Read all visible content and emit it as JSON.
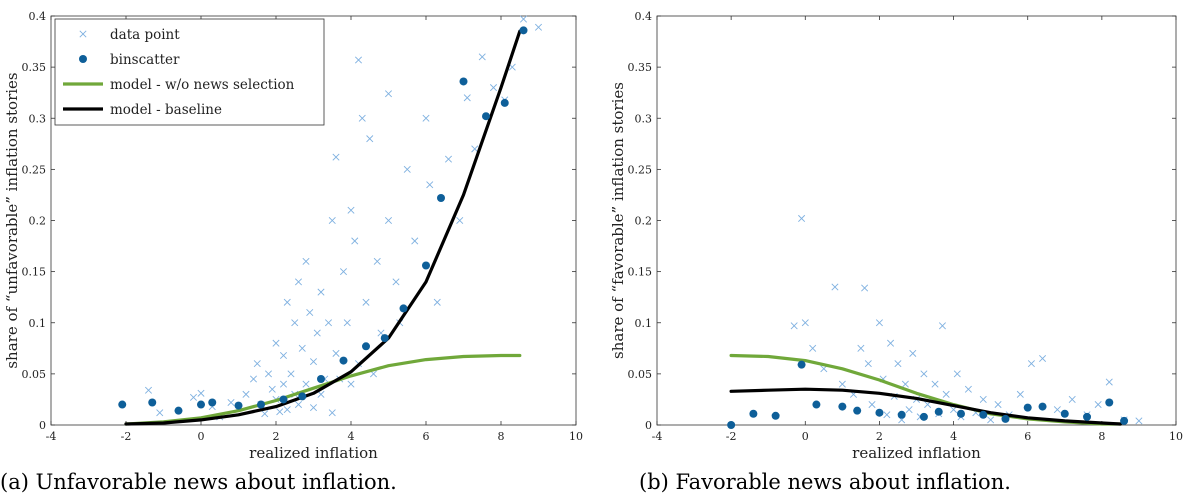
{
  "figure": {
    "caption_a": "(a) Unfavorable news about inflation.",
    "caption_b": "(b) Favorable news about inflation."
  },
  "colors": {
    "data_point": "#7eb0e0",
    "binscatter": "#0e5f99",
    "model_no_selection": "#70a83a",
    "model_baseline": "#000000",
    "axis": "#333333"
  },
  "chart_data": [
    {
      "type": "scatter",
      "xlabel": "realized inflation",
      "ylabel": "share of “unfavorable” inflation stories",
      "xlim": [
        -4,
        10
      ],
      "ylim": [
        0,
        0.4
      ],
      "xticks": [
        -4,
        -2,
        0,
        2,
        4,
        6,
        8,
        10
      ],
      "yticks": [
        0,
        0.05,
        0.1,
        0.15,
        0.2,
        0.25,
        0.3,
        0.35,
        0.4
      ],
      "legend": {
        "position": "top-left",
        "entries": [
          "data point",
          "binscatter",
          "model - w/o news selection",
          "model - baseline"
        ]
      },
      "series": [
        {
          "name": "data point",
          "marker": "x",
          "points": [
            [
              -1.4,
              0.034
            ],
            [
              -1.1,
              0.012
            ],
            [
              -0.2,
              0.027
            ],
            [
              0.0,
              0.031
            ],
            [
              0.3,
              0.018
            ],
            [
              0.5,
              0.008
            ],
            [
              0.8,
              0.022
            ],
            [
              1.0,
              0.017
            ],
            [
              1.2,
              0.03
            ],
            [
              1.4,
              0.045
            ],
            [
              1.5,
              0.06
            ],
            [
              1.6,
              0.02
            ],
            [
              1.7,
              0.011
            ],
            [
              1.8,
              0.05
            ],
            [
              1.9,
              0.035
            ],
            [
              2.0,
              0.08
            ],
            [
              2.0,
              0.025
            ],
            [
              2.1,
              0.013
            ],
            [
              2.2,
              0.068
            ],
            [
              2.2,
              0.04
            ],
            [
              2.3,
              0.12
            ],
            [
              2.3,
              0.015
            ],
            [
              2.4,
              0.05
            ],
            [
              2.5,
              0.1
            ],
            [
              2.5,
              0.03
            ],
            [
              2.6,
              0.14
            ],
            [
              2.6,
              0.02
            ],
            [
              2.7,
              0.075
            ],
            [
              2.8,
              0.16
            ],
            [
              2.8,
              0.04
            ],
            [
              2.9,
              0.11
            ],
            [
              3.0,
              0.062
            ],
            [
              3.0,
              0.017
            ],
            [
              3.1,
              0.09
            ],
            [
              3.2,
              0.13
            ],
            [
              3.2,
              0.03
            ],
            [
              3.3,
              0.045
            ],
            [
              3.4,
              0.1
            ],
            [
              3.5,
              0.2
            ],
            [
              3.5,
              0.012
            ],
            [
              3.6,
              0.262
            ],
            [
              3.6,
              0.07
            ],
            [
              3.7,
              0.045
            ],
            [
              3.8,
              0.15
            ],
            [
              3.9,
              0.1
            ],
            [
              4.0,
              0.21
            ],
            [
              4.0,
              0.04
            ],
            [
              4.1,
              0.18
            ],
            [
              4.2,
              0.357
            ],
            [
              4.2,
              0.06
            ],
            [
              4.3,
              0.3
            ],
            [
              4.4,
              0.12
            ],
            [
              4.5,
              0.28
            ],
            [
              4.6,
              0.05
            ],
            [
              4.7,
              0.16
            ],
            [
              4.8,
              0.09
            ],
            [
              5.0,
              0.2
            ],
            [
              5.0,
              0.324
            ],
            [
              5.2,
              0.14
            ],
            [
              5.3,
              0.1
            ],
            [
              5.5,
              0.25
            ],
            [
              5.7,
              0.18
            ],
            [
              6.0,
              0.3
            ],
            [
              6.1,
              0.235
            ],
            [
              6.3,
              0.12
            ],
            [
              6.6,
              0.26
            ],
            [
              6.9,
              0.2
            ],
            [
              7.1,
              0.32
            ],
            [
              7.3,
              0.27
            ],
            [
              7.5,
              0.36
            ],
            [
              7.8,
              0.33
            ],
            [
              8.1,
              0.318
            ],
            [
              8.3,
              0.35
            ],
            [
              8.6,
              0.397
            ],
            [
              9.0,
              0.389
            ]
          ]
        },
        {
          "name": "binscatter",
          "marker": "circle",
          "points": [
            [
              -2.1,
              0.02
            ],
            [
              -1.3,
              0.022
            ],
            [
              -0.6,
              0.014
            ],
            [
              0.0,
              0.02
            ],
            [
              0.3,
              0.022
            ],
            [
              1.0,
              0.019
            ],
            [
              1.6,
              0.02
            ],
            [
              2.2,
              0.025
            ],
            [
              2.7,
              0.028
            ],
            [
              3.2,
              0.045
            ],
            [
              3.8,
              0.063
            ],
            [
              4.4,
              0.077
            ],
            [
              4.9,
              0.085
            ],
            [
              5.4,
              0.114
            ],
            [
              6.0,
              0.156
            ],
            [
              6.4,
              0.222
            ],
            [
              7.0,
              0.336
            ],
            [
              7.6,
              0.302
            ],
            [
              8.1,
              0.315
            ],
            [
              8.6,
              0.386
            ]
          ]
        },
        {
          "name": "model - w/o news selection",
          "line": true,
          "points": [
            [
              -2,
              0.001
            ],
            [
              -1,
              0.003
            ],
            [
              0,
              0.007
            ],
            [
              1,
              0.014
            ],
            [
              2,
              0.024
            ],
            [
              3,
              0.036
            ],
            [
              4,
              0.048
            ],
            [
              5,
              0.058
            ],
            [
              6,
              0.064
            ],
            [
              7,
              0.067
            ],
            [
              8,
              0.068
            ],
            [
              8.5,
              0.068
            ]
          ]
        },
        {
          "name": "model - baseline",
          "line": true,
          "points": [
            [
              -2,
              0.001
            ],
            [
              -1,
              0.002
            ],
            [
              0,
              0.005
            ],
            [
              1,
              0.01
            ],
            [
              2,
              0.018
            ],
            [
              3,
              0.031
            ],
            [
              4,
              0.052
            ],
            [
              5,
              0.085
            ],
            [
              6,
              0.14
            ],
            [
              7,
              0.225
            ],
            [
              8,
              0.33
            ],
            [
              8.5,
              0.385
            ]
          ]
        }
      ]
    },
    {
      "type": "scatter",
      "xlabel": "realized inflation",
      "ylabel": "share of “favorable” inflation stories",
      "xlim": [
        -4,
        10
      ],
      "ylim": [
        0,
        0.4
      ],
      "xticks": [
        -4,
        -2,
        0,
        2,
        4,
        6,
        8,
        10
      ],
      "yticks": [
        0,
        0.05,
        0.1,
        0.15,
        0.2,
        0.25,
        0.3,
        0.35,
        0.4
      ],
      "series": [
        {
          "name": "data point",
          "marker": "x",
          "points": [
            [
              -0.3,
              0.097
            ],
            [
              -0.1,
              0.202
            ],
            [
              0.0,
              0.1
            ],
            [
              0.2,
              0.075
            ],
            [
              0.5,
              0.055
            ],
            [
              0.8,
              0.135
            ],
            [
              1.0,
              0.04
            ],
            [
              1.3,
              0.03
            ],
            [
              1.5,
              0.075
            ],
            [
              1.6,
              0.134
            ],
            [
              1.7,
              0.06
            ],
            [
              1.8,
              0.02
            ],
            [
              2.0,
              0.1
            ],
            [
              2.1,
              0.045
            ],
            [
              2.2,
              0.01
            ],
            [
              2.3,
              0.08
            ],
            [
              2.4,
              0.028
            ],
            [
              2.5,
              0.06
            ],
            [
              2.6,
              0.005
            ],
            [
              2.7,
              0.04
            ],
            [
              2.8,
              0.015
            ],
            [
              2.9,
              0.07
            ],
            [
              3.0,
              0.025
            ],
            [
              3.1,
              0.008
            ],
            [
              3.2,
              0.05
            ],
            [
              3.3,
              0.02
            ],
            [
              3.5,
              0.04
            ],
            [
              3.6,
              0.011
            ],
            [
              3.7,
              0.097
            ],
            [
              3.8,
              0.03
            ],
            [
              4.0,
              0.015
            ],
            [
              4.1,
              0.05
            ],
            [
              4.2,
              0.008
            ],
            [
              4.4,
              0.035
            ],
            [
              4.6,
              0.012
            ],
            [
              4.8,
              0.025
            ],
            [
              5.0,
              0.005
            ],
            [
              5.2,
              0.02
            ],
            [
              5.5,
              0.01
            ],
            [
              5.8,
              0.03
            ],
            [
              6.1,
              0.06
            ],
            [
              6.4,
              0.065
            ],
            [
              6.8,
              0.015
            ],
            [
              7.2,
              0.025
            ],
            [
              7.6,
              0.01
            ],
            [
              7.9,
              0.02
            ],
            [
              8.2,
              0.042
            ],
            [
              8.6,
              0.005
            ],
            [
              9.0,
              0.004
            ]
          ]
        },
        {
          "name": "binscatter",
          "marker": "circle",
          "points": [
            [
              -2.0,
              0.0
            ],
            [
              -1.4,
              0.011
            ],
            [
              -0.8,
              0.009
            ],
            [
              -0.1,
              0.059
            ],
            [
              0.3,
              0.02
            ],
            [
              1.0,
              0.018
            ],
            [
              1.4,
              0.014
            ],
            [
              2.0,
              0.012
            ],
            [
              2.6,
              0.01
            ],
            [
              3.2,
              0.008
            ],
            [
              3.6,
              0.013
            ],
            [
              4.2,
              0.011
            ],
            [
              4.8,
              0.01
            ],
            [
              5.4,
              0.006
            ],
            [
              6.0,
              0.017
            ],
            [
              6.4,
              0.018
            ],
            [
              7.0,
              0.011
            ],
            [
              7.6,
              0.008
            ],
            [
              8.2,
              0.022
            ],
            [
              8.6,
              0.004
            ]
          ]
        },
        {
          "name": "model - w/o news selection",
          "line": true,
          "points": [
            [
              -2,
              0.068
            ],
            [
              -1,
              0.067
            ],
            [
              0,
              0.063
            ],
            [
              1,
              0.055
            ],
            [
              2,
              0.044
            ],
            [
              3,
              0.031
            ],
            [
              4,
              0.02
            ],
            [
              5,
              0.011
            ],
            [
              6,
              0.006
            ],
            [
              7,
              0.003
            ],
            [
              8,
              0.001
            ],
            [
              8.5,
              0.001
            ]
          ]
        },
        {
          "name": "model - baseline",
          "line": true,
          "points": [
            [
              -2,
              0.033
            ],
            [
              -1,
              0.034
            ],
            [
              0,
              0.035
            ],
            [
              1,
              0.034
            ],
            [
              2,
              0.031
            ],
            [
              3,
              0.026
            ],
            [
              4,
              0.019
            ],
            [
              5,
              0.012
            ],
            [
              6,
              0.007
            ],
            [
              7,
              0.004
            ],
            [
              8,
              0.002
            ],
            [
              8.5,
              0.001
            ]
          ]
        }
      ]
    }
  ]
}
